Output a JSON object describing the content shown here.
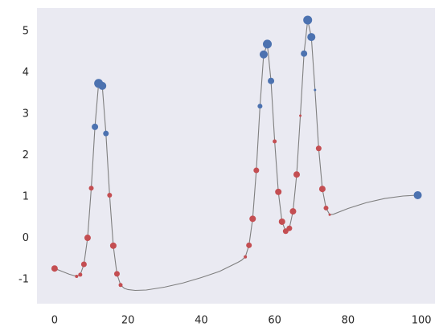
{
  "chart_data": {
    "type": "line",
    "xlim": [
      -4.8,
      103.7
    ],
    "ylim": [
      -1.58,
      5.56
    ],
    "xticks": [
      0,
      20,
      40,
      60,
      80,
      100
    ],
    "yticks": [
      -1,
      0,
      1,
      2,
      3,
      4,
      5
    ],
    "grid": false,
    "background": "#eaeaf2",
    "series": [
      {
        "type": "line",
        "color": "#7f7f7f",
        "x": [
          0,
          2,
          4,
          6,
          7,
          8,
          9,
          10,
          11,
          12,
          13,
          14,
          15,
          16,
          17,
          18,
          19,
          20,
          22,
          25,
          30,
          35,
          40,
          45,
          50,
          51,
          52,
          53,
          54,
          55,
          56,
          57,
          58,
          59,
          60,
          61,
          62,
          63,
          64,
          65,
          66,
          67,
          68,
          69,
          70,
          71,
          72,
          73,
          74,
          75,
          76,
          80,
          85,
          90,
          95,
          99
        ],
        "values": [
          -0.73,
          -0.8,
          -0.87,
          -0.92,
          -0.88,
          -0.63,
          0.01,
          1.21,
          2.69,
          3.74,
          3.68,
          2.53,
          1.04,
          -0.18,
          -0.86,
          -1.13,
          -1.21,
          -1.24,
          -1.26,
          -1.25,
          -1.18,
          -1.08,
          -0.95,
          -0.8,
          -0.58,
          -0.53,
          -0.45,
          -0.17,
          0.47,
          1.64,
          3.19,
          4.44,
          4.69,
          3.8,
          2.34,
          1.12,
          0.4,
          0.17,
          0.24,
          0.65,
          1.54,
          2.96,
          4.46,
          5.27,
          4.86,
          3.58,
          2.17,
          1.19,
          0.73,
          0.57,
          0.58,
          0.72,
          0.86,
          0.96,
          1.02,
          1.04
        ]
      },
      {
        "type": "scatter",
        "x": [
          0,
          6,
          7,
          8,
          9,
          10,
          11,
          12,
          13,
          14,
          15,
          16,
          17,
          18,
          52,
          53,
          54,
          55,
          56,
          57,
          58,
          59,
          60,
          61,
          62,
          63,
          64,
          65,
          66,
          67,
          68,
          69,
          70,
          71,
          72,
          73,
          74,
          75,
          99
        ],
        "values": [
          -0.73,
          -0.92,
          -0.88,
          -0.63,
          0.01,
          1.21,
          2.69,
          3.74,
          3.68,
          2.53,
          1.04,
          -0.18,
          -0.86,
          -1.13,
          -0.45,
          -0.17,
          0.47,
          1.64,
          3.19,
          4.44,
          4.69,
          3.8,
          2.34,
          1.12,
          0.4,
          0.17,
          0.24,
          0.65,
          1.54,
          2.96,
          4.46,
          5.27,
          4.86,
          3.58,
          2.17,
          1.19,
          0.73,
          0.57,
          1.04
        ],
        "sizes": [
          4,
          2,
          2.5,
          3.5,
          4,
          3,
          4,
          5.5,
          5,
          3.5,
          3,
          4,
          3.5,
          2.5,
          2,
          3.5,
          4,
          3.5,
          3,
          5,
          5.5,
          4,
          2.5,
          4,
          4,
          3.5,
          3.5,
          4,
          4,
          1.5,
          4,
          5.5,
          5,
          1.5,
          3.5,
          4,
          3,
          1.5,
          5
        ],
        "colors": [
          "#c44e52",
          "#c44e52",
          "#c44e52",
          "#c44e52",
          "#c44e52",
          "#c44e52",
          "#4c72b0",
          "#4c72b0",
          "#4c72b0",
          "#4c72b0",
          "#c44e52",
          "#c44e52",
          "#c44e52",
          "#c44e52",
          "#c44e52",
          "#c44e52",
          "#c44e52",
          "#c44e52",
          "#4c72b0",
          "#4c72b0",
          "#4c72b0",
          "#4c72b0",
          "#c44e52",
          "#c44e52",
          "#c44e52",
          "#c44e52",
          "#c44e52",
          "#c44e52",
          "#c44e52",
          "#c44e52",
          "#4c72b0",
          "#4c72b0",
          "#4c72b0",
          "#4c72b0",
          "#c44e52",
          "#c44e52",
          "#c44e52",
          "#c44e52",
          "#4c72b0"
        ]
      }
    ]
  }
}
